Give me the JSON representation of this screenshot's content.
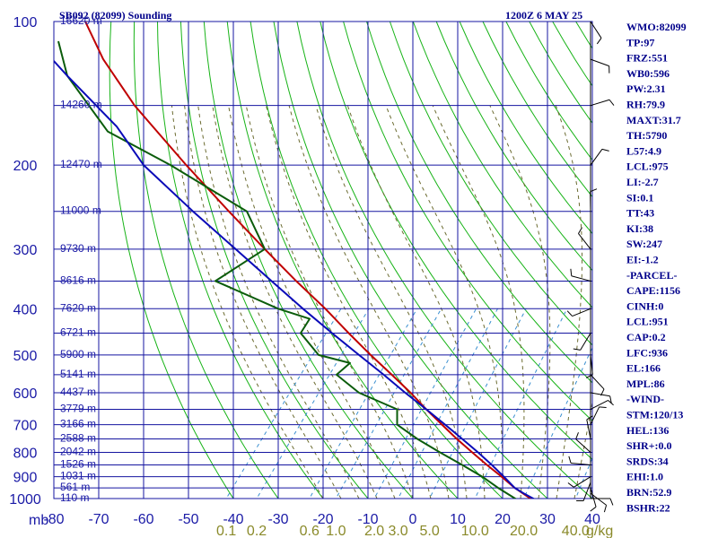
{
  "header": {
    "station": "SB092 (82099) Sounding",
    "time": "1200Z  6 MAY 25"
  },
  "axis_unit_label": "mb",
  "mixing_unit": "g/kg",
  "colors": {
    "grid": "#1515a0",
    "dry_adiabats": "#17b317",
    "moist_adiabats": "#6b6b30",
    "mixing_ratio": "#3a8fd0",
    "temperature": "#c00000",
    "dewpoint": "#0b5c0b",
    "parcel": "#0a0ab8",
    "text": "#00008b",
    "wind": "#000000"
  },
  "indices": [
    "WMO:82099",
    "TP:97",
    "FRZ:551",
    "WB0:596",
    "PW:2.31",
    "RH:79.9",
    "MAXT:31.7",
    "TH:5790",
    "L57:4.9",
    "LCL:975",
    "LI:-2.7",
    "SI:0.1",
    "TT:43",
    "KI:38",
    "SW:247",
    "EI:-1.2",
    "-PARCEL-",
    "CAPE:1156",
    "CINH:0",
    "LCL:951",
    "CAP:0.2",
    "LFC:936",
    "EL:166",
    "MPL:86",
    "-WIND-",
    "STM:120/13",
    "HEL:136",
    "SHR+:0.0",
    "SRDS:34",
    "EHI:1.0",
    "BRN:52.9",
    "BSHR:22"
  ],
  "chart_data": {
    "type": "skew-t",
    "title": "SB092 (82099) Sounding",
    "valid_time": "1200Z  6 MAY 25",
    "y_axis": "pressure (mb), log scale",
    "ylim": [
      1000,
      100
    ],
    "xlim": [
      -80,
      40
    ],
    "pressure_ticks": [
      100,
      200,
      300,
      400,
      500,
      600,
      700,
      800,
      900,
      1000
    ],
    "pressure_lines": [
      100,
      150,
      200,
      250,
      300,
      350,
      400,
      450,
      500,
      550,
      600,
      650,
      700,
      750,
      800,
      850,
      900,
      950,
      1000
    ],
    "temperature_ticks": [
      -80,
      -70,
      -60,
      -50,
      -40,
      -30,
      -20,
      -10,
      0,
      10,
      20,
      30,
      40
    ],
    "height_labels": [
      {
        "p": 100,
        "label": "16620 m"
      },
      {
        "p": 150,
        "label": "14260 m"
      },
      {
        "p": 200,
        "label": "12470 m"
      },
      {
        "p": 250,
        "label": "11000 m"
      },
      {
        "p": 300,
        "label": "9730 m"
      },
      {
        "p": 350,
        "label": "8616 m"
      },
      {
        "p": 400,
        "label": "7620 m"
      },
      {
        "p": 450,
        "label": "6721 m"
      },
      {
        "p": 500,
        "label": "5900 m"
      },
      {
        "p": 550,
        "label": "5141 m"
      },
      {
        "p": 600,
        "label": "4437 m"
      },
      {
        "p": 650,
        "label": "3779 m"
      },
      {
        "p": 700,
        "label": "3166 m"
      },
      {
        "p": 750,
        "label": "2588 m"
      },
      {
        "p": 800,
        "label": "2042 m"
      },
      {
        "p": 850,
        "label": "1526 m"
      },
      {
        "p": 900,
        "label": "1031 m"
      },
      {
        "p": 950,
        "label": "561 m"
      },
      {
        "p": 1000,
        "label": "110 m"
      }
    ],
    "mixing_ratio_labels": [
      "0.1",
      "0.2",
      "0.6",
      "1.0",
      "2.0",
      "3.0",
      "5.0",
      "10.0",
      "20.0",
      "40.0"
    ],
    "mixing_ratio_values": [
      0.1,
      0.2,
      0.6,
      1.0,
      2.0,
      3.0,
      5.0,
      10.0,
      20.0,
      40.0
    ],
    "series": [
      {
        "name": "temperature",
        "points": [
          [
            1008,
            27.5
          ],
          [
            1000,
            26.2
          ],
          [
            950,
            22.7
          ],
          [
            900,
            19.8
          ],
          [
            850,
            16.5
          ],
          [
            800,
            13.2
          ],
          [
            750,
            9.8
          ],
          [
            700,
            6.5
          ],
          [
            650,
            3.0
          ],
          [
            600,
            -0.5
          ],
          [
            550,
            -4.7
          ],
          [
            500,
            -9.4
          ],
          [
            450,
            -14.3
          ],
          [
            400,
            -19.5
          ],
          [
            350,
            -26.0
          ],
          [
            300,
            -33.0
          ],
          [
            250,
            -41.0
          ],
          [
            200,
            -50.5
          ],
          [
            170,
            -57.0
          ],
          [
            150,
            -62.0
          ],
          [
            120,
            -69.0
          ],
          [
            100,
            -73.0
          ]
        ]
      },
      {
        "name": "dewpoint",
        "points": [
          [
            1008,
            23.5
          ],
          [
            1000,
            22.8
          ],
          [
            950,
            19.0
          ],
          [
            900,
            15.5
          ],
          [
            850,
            11.0
          ],
          [
            800,
            6.0
          ],
          [
            750,
            1.0
          ],
          [
            700,
            -3.5
          ],
          [
            650,
            -3.5
          ],
          [
            600,
            -12.0
          ],
          [
            550,
            -17.0
          ],
          [
            520,
            -14.0
          ],
          [
            500,
            -21.0
          ],
          [
            450,
            -25.0
          ],
          [
            420,
            -23.0
          ],
          [
            400,
            -30.0
          ],
          [
            350,
            -44.0
          ],
          [
            300,
            -33.0
          ],
          [
            250,
            -37.0
          ],
          [
            200,
            -54.0
          ],
          [
            170,
            -68.0
          ],
          [
            130,
            -77.0
          ],
          [
            110,
            -79.0
          ]
        ]
      },
      {
        "name": "parcel",
        "points": [
          [
            1008,
            27.5
          ],
          [
            975,
            24.7
          ],
          [
            950,
            22.7
          ],
          [
            900,
            20.3
          ],
          [
            850,
            17.6
          ],
          [
            800,
            14.5
          ],
          [
            750,
            11.0
          ],
          [
            700,
            7.2
          ],
          [
            650,
            3.0
          ],
          [
            600,
            -1.7
          ],
          [
            550,
            -6.5
          ],
          [
            500,
            -12.0
          ],
          [
            450,
            -18.0
          ],
          [
            400,
            -24.5
          ],
          [
            350,
            -31.5
          ],
          [
            300,
            -39.5
          ],
          [
            250,
            -49.0
          ],
          [
            200,
            -60.0
          ],
          [
            166,
            -66.0
          ],
          [
            130,
            -77.0
          ],
          [
            110,
            -84.0
          ]
        ]
      }
    ],
    "wind_barbs": [
      {
        "p": 1000
      },
      {
        "p": 975
      },
      {
        "p": 950
      },
      {
        "p": 925
      },
      {
        "p": 900
      },
      {
        "p": 850
      },
      {
        "p": 800
      },
      {
        "p": 750
      },
      {
        "p": 700
      },
      {
        "p": 650
      },
      {
        "p": 600
      },
      {
        "p": 550
      },
      {
        "p": 500
      },
      {
        "p": 450
      },
      {
        "p": 400
      },
      {
        "p": 350
      },
      {
        "p": 300
      },
      {
        "p": 250
      },
      {
        "p": 200
      },
      {
        "p": 150
      },
      {
        "p": 120
      },
      {
        "p": 100
      }
    ]
  }
}
